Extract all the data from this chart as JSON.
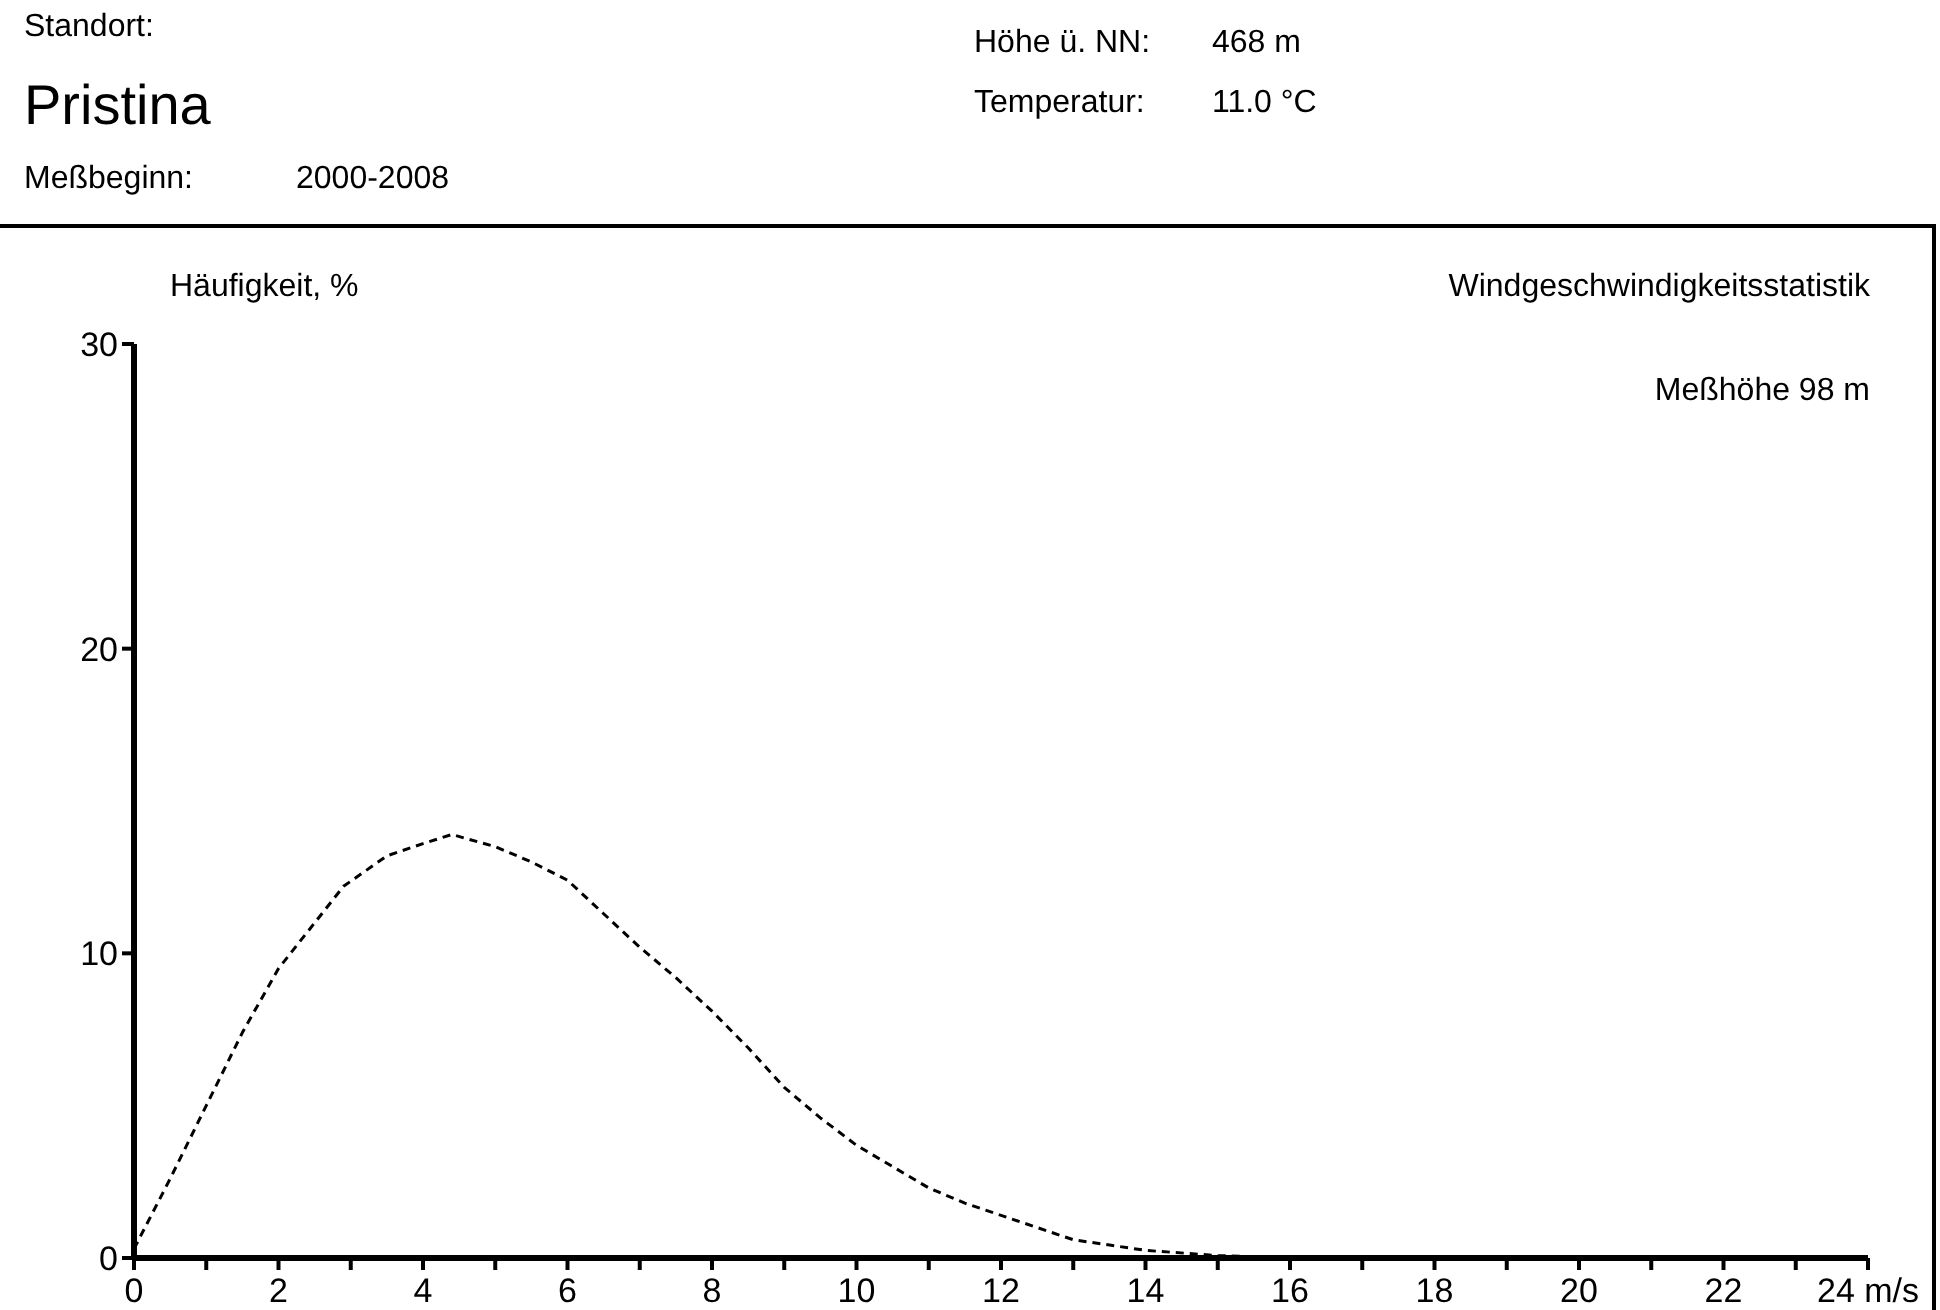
{
  "chart_data": {
    "type": "line",
    "title": "Pristina",
    "subtitle": "Windgeschwindigkeitsstatistik",
    "ylabel": "Häufigkeit, %",
    "annotations": [
      "Standort:",
      "Meßbeginn:",
      "2000-2008",
      "Höhe ü. NN:",
      "468 m",
      "Temperatur:",
      "11.0 °C",
      "Meßhöhe 98 m"
    ],
    "series": [
      {
        "color": "#000000",
        "x": [
          0,
          0.5,
          1,
          1.5,
          2,
          2.5,
          2.9,
          3.5,
          4,
          4.4,
          5,
          5.5,
          6,
          6.5,
          7,
          7.5,
          8,
          8.5,
          9,
          9.5,
          10,
          10.5,
          11,
          11.5,
          12,
          12.5,
          13,
          14,
          15,
          16
        ],
        "values": [
          0.3,
          2.6,
          5.0,
          7.4,
          9.5,
          11.0,
          12.2,
          13.2,
          13.6,
          13.9,
          13.5,
          13.0,
          12.4,
          11.3,
          10.2,
          9.2,
          8.1,
          6.9,
          5.6,
          4.6,
          3.7,
          3.0,
          2.3,
          1.8,
          1.4,
          1.0,
          0.6,
          0.25,
          0.08,
          0
        ]
      }
    ],
    "xlim": [
      0,
      24
    ],
    "xticks": [
      0,
      {
        "value": 1,
        "label": null
      },
      2,
      {
        "value": 3,
        "label": null
      },
      4,
      {
        "value": 5,
        "label": null
      },
      6,
      {
        "value": 7,
        "label": null
      },
      8,
      {
        "value": 9,
        "label": null
      },
      10,
      {
        "value": 11,
        "label": null
      },
      12,
      {
        "value": 13,
        "label": null
      },
      14,
      {
        "value": 15,
        "label": null
      },
      16,
      {
        "value": 17,
        "label": null
      },
      18,
      {
        "value": 19,
        "label": null
      },
      20,
      {
        "value": 21,
        "label": null
      },
      22,
      {
        "value": 23,
        "label": null
      },
      {
        "value": 24,
        "label": "24 m/s"
      }
    ],
    "ylim": [
      0,
      30
    ],
    "yticks": [
      0,
      10,
      20,
      30
    ],
    "marker": "none",
    "line_style": "dashed"
  }
}
